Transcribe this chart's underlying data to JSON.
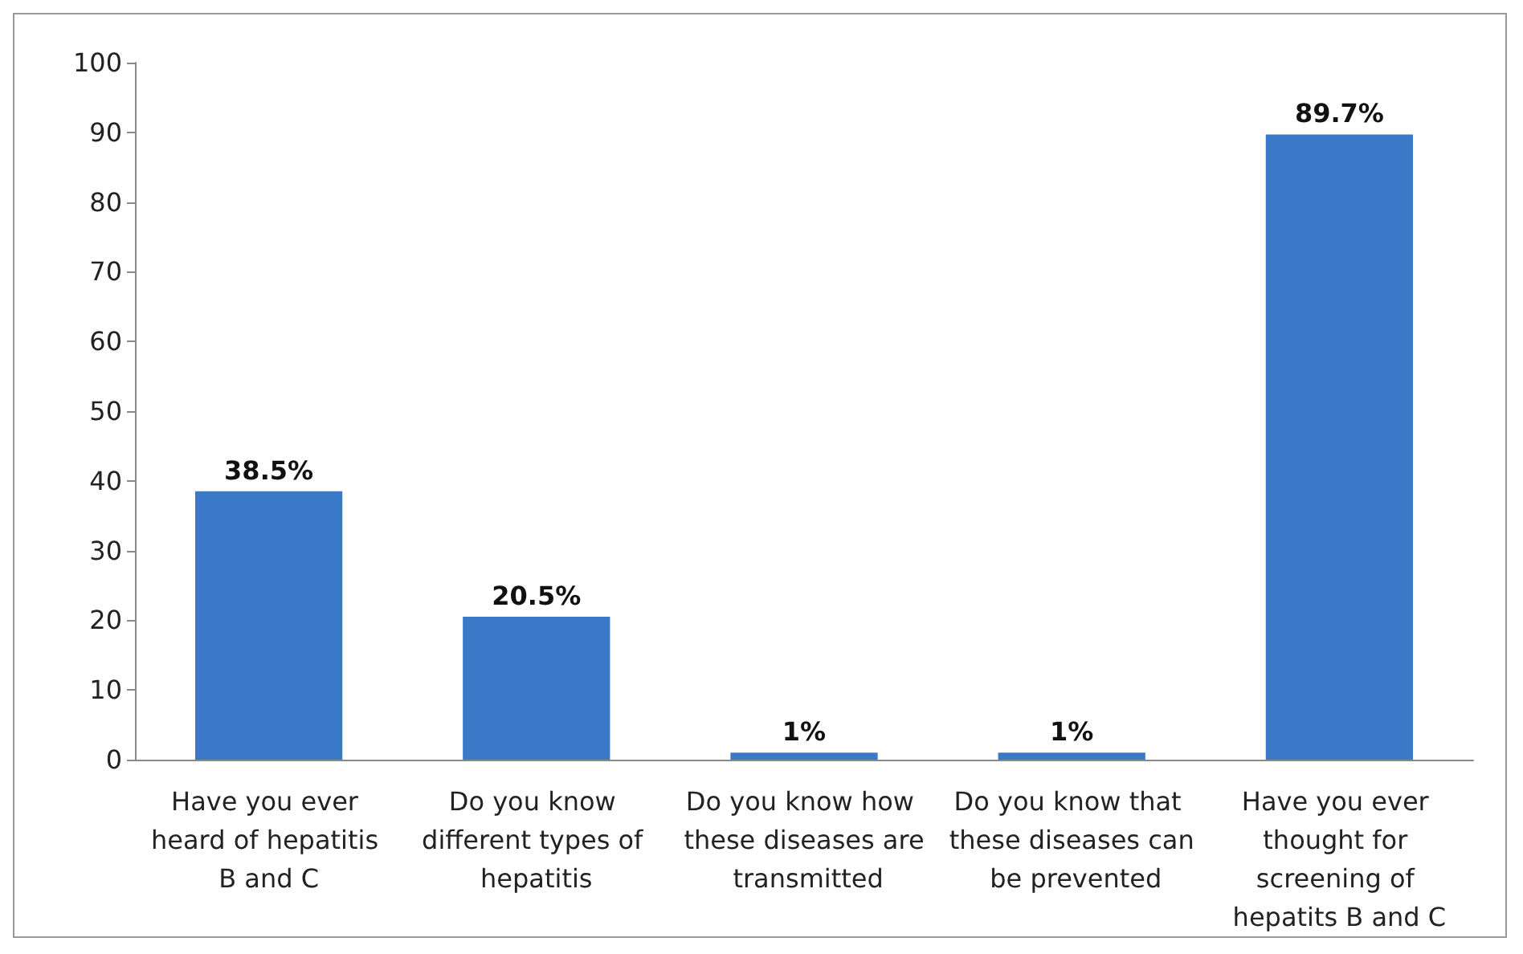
{
  "chart_data": {
    "type": "bar",
    "categories": [
      "Have you ever heard of hepatitis B and C",
      "Do you know different types of hepatitis",
      "Do you know how these diseases are transmitted",
      "Do you know that these diseases can be prevented",
      "Have you ever thought for screening of hepatits B and C"
    ],
    "values": [
      38.5,
      20.5,
      1,
      1,
      89.7
    ],
    "value_labels": [
      "38.5%",
      "20.5%",
      "1%",
      "1%",
      "89.7%"
    ],
    "color": "#3a78c8",
    "ylim": [
      0,
      100
    ],
    "yticks": [
      0,
      10,
      20,
      30,
      40,
      50,
      60,
      70,
      80,
      90,
      100
    ],
    "grid": false
  }
}
